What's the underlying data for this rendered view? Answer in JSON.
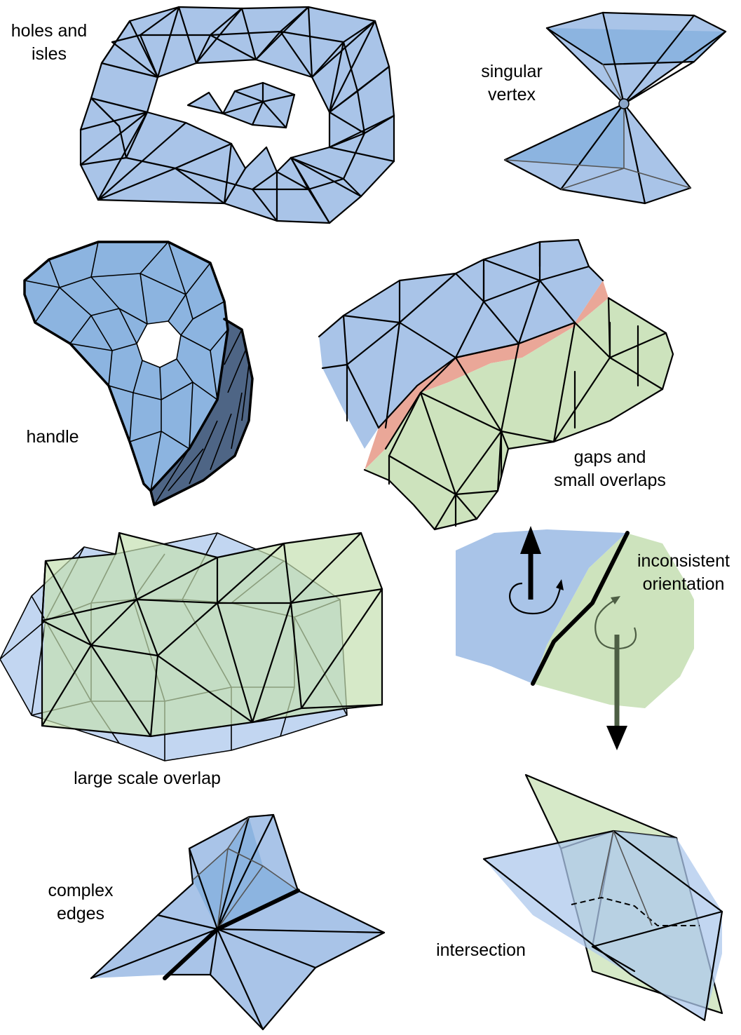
{
  "labels": {
    "holes": [
      "holes and",
      "isles"
    ],
    "singular": [
      "singular",
      "vertex"
    ],
    "handle": "handle",
    "gaps": [
      "gaps and",
      "small overlaps"
    ],
    "inconsistent": [
      "inconsistent",
      "orientation"
    ],
    "large": "large scale overlap",
    "complex": [
      "complex",
      "edges"
    ],
    "intersection": "intersection"
  },
  "colors": {
    "mesh_blue": "#a9c4e8",
    "mesh_green": "#cde3bd",
    "gap_pink": "#eaa798",
    "handle_dark": "#4e6585",
    "edge": "#000000"
  }
}
